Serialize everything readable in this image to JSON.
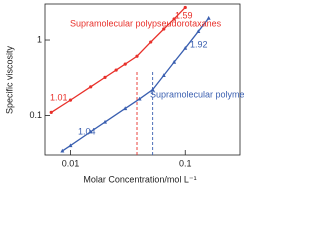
{
  "chart_data": {
    "type": "line",
    "x_label": "Molar Concentration/mol L⁻¹",
    "y_label": "Specific viscosity",
    "log_x": true,
    "log_y": true,
    "xlim": [
      0.006,
      0.3
    ],
    "ylim": [
      0.03,
      3
    ],
    "xticks": [
      0.01,
      0.1
    ],
    "yticks": [
      0.1,
      1
    ],
    "series": [
      {
        "name": "Supramolecular polypseudorotaxanes",
        "color": "#e8302a",
        "x": [
          0.0068,
          0.01,
          0.015,
          0.02,
          0.025,
          0.03,
          0.038,
          0.05,
          0.065,
          0.08,
          0.1
        ],
        "values": [
          0.11,
          0.16,
          0.24,
          0.32,
          0.4,
          0.48,
          0.61,
          0.94,
          1.4,
          1.9,
          2.7
        ]
      },
      {
        "name": "Supramolecular polymers",
        "color": "#3a5fb0",
        "x": [
          0.0085,
          0.01,
          0.015,
          0.02,
          0.03,
          0.04,
          0.052,
          0.065,
          0.08,
          0.1,
          0.13,
          0.16
        ],
        "values": [
          0.034,
          0.04,
          0.061,
          0.082,
          0.124,
          0.166,
          0.22,
          0.34,
          0.51,
          0.78,
          1.3,
          1.95
        ]
      }
    ],
    "vlines": [
      {
        "x": 0.038,
        "color": "#e8302a"
      },
      {
        "x": 0.052,
        "color": "#3a5fb0"
      }
    ],
    "annotations": [
      {
        "text": "1.01",
        "color": "#e8302a"
      },
      {
        "text": "1.59",
        "color": "#e8302a"
      },
      {
        "text": "1.04",
        "color": "#3a5fb0"
      },
      {
        "text": "1.92",
        "color": "#3a5fb0"
      }
    ]
  }
}
